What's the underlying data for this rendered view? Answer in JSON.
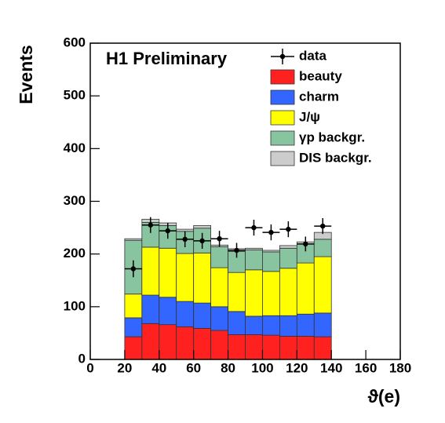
{
  "chart_data": {
    "type": "histogram",
    "title": "H1 Preliminary",
    "xlabel": "ϑ(e)",
    "ylabel": "Events",
    "bins": [
      20,
      30,
      40,
      50,
      60,
      70,
      80,
      90,
      100,
      110,
      120,
      130,
      140
    ],
    "series": [
      {
        "name": "beauty",
        "color": "#ff2020",
        "values": [
          43,
          68,
          66,
          62,
          59,
          55,
          47,
          47,
          46,
          44,
          44,
          43
        ]
      },
      {
        "name": "charm",
        "color": "#3366ff",
        "values": [
          36,
          54,
          52,
          48,
          48,
          45,
          44,
          35,
          37,
          39,
          42,
          45
        ]
      },
      {
        "name": "J/ψ",
        "color": "#ffff00",
        "values": [
          45,
          91,
          93,
          91,
          95,
          74,
          74,
          88,
          84,
          90,
          97,
          107
        ]
      },
      {
        "name": "γp backgr.",
        "color": "#88c4a0",
        "values": [
          102,
          47,
          43,
          42,
          47,
          40,
          40,
          38,
          37,
          38,
          36,
          33
        ]
      },
      {
        "name": "DIS backgr.",
        "color": "#cccccc",
        "values": [
          3,
          6,
          5,
          4,
          5,
          3,
          5,
          3,
          3,
          5,
          4,
          13
        ]
      }
    ],
    "points": {
      "name": "data",
      "color": "#000000",
      "values": [
        172,
        255,
        244,
        228,
        225,
        229,
        207,
        250,
        241,
        247,
        219,
        253
      ],
      "errors": [
        16,
        15,
        15,
        15,
        15,
        15,
        14,
        15,
        15,
        15,
        14,
        15
      ]
    },
    "xlim": [
      0,
      180
    ],
    "ylim": [
      0,
      600
    ],
    "xticks": [
      0,
      20,
      40,
      60,
      80,
      100,
      120,
      140,
      160,
      180
    ],
    "yticks": [
      0,
      100,
      200,
      300,
      400,
      500,
      600
    ]
  }
}
